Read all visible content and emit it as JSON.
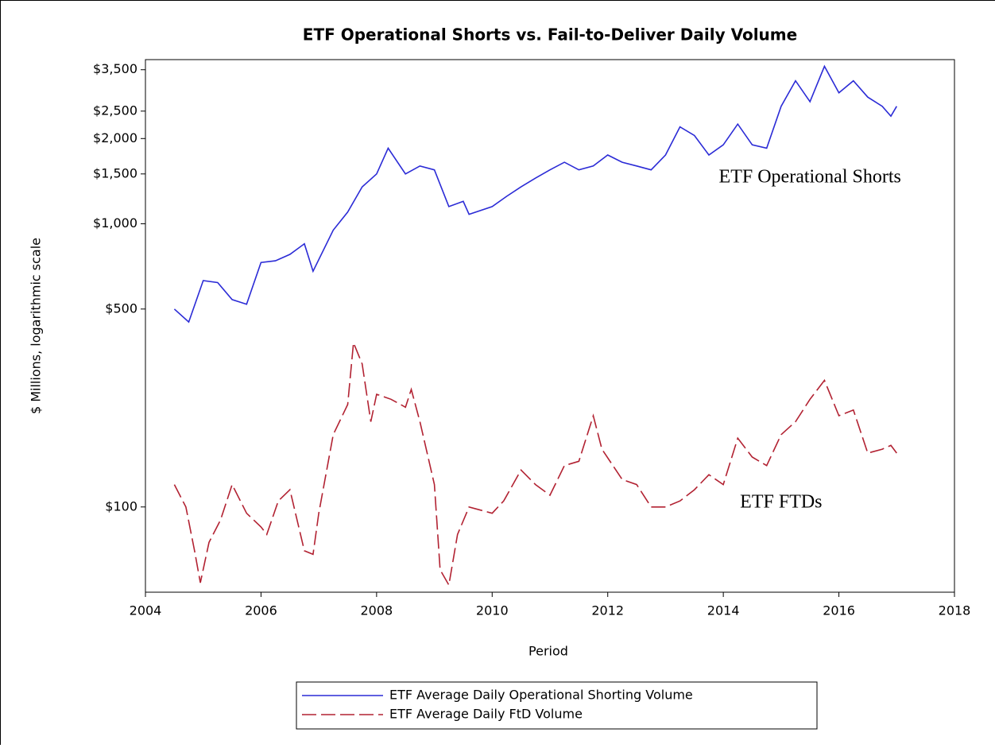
{
  "chart_data": {
    "type": "line",
    "title": "ETF Operational Shorts vs. Fail-to-Deliver Daily Volume",
    "xlabel": "Period",
    "ylabel": "$ Millions,  logarithmic scale",
    "log_y": true,
    "xlim": [
      2004,
      2018
    ],
    "xticks": [
      2004,
      2006,
      2008,
      2010,
      2012,
      2014,
      2016,
      2018
    ],
    "ylim": [
      50,
      3800
    ],
    "yticks": [
      {
        "value": 100,
        "label": "$100"
      },
      {
        "value": 500,
        "label": "$500"
      },
      {
        "value": 1000,
        "label": "$1,000"
      },
      {
        "value": 1500,
        "label": "$1,500"
      },
      {
        "value": 2000,
        "label": "$2,000"
      },
      {
        "value": 2500,
        "label": "$2,500"
      },
      {
        "value": 3500,
        "label": "$3,500"
      }
    ],
    "legend": "bottom",
    "annotations": [
      {
        "text": "ETF Operational Shorts",
        "x": 2015.5,
        "y": 1450
      },
      {
        "text": "ETF FTDs",
        "x": 2015.0,
        "y": 103
      }
    ],
    "series": [
      {
        "name": "ETF Average Daily Operational Shorting Volume",
        "color": "#2b2bd6",
        "line_style": "solid",
        "x": [
          2004.5,
          2004.75,
          2005.0,
          2005.25,
          2005.5,
          2005.75,
          2006.0,
          2006.25,
          2006.5,
          2006.75,
          2006.9,
          2007.25,
          2007.5,
          2007.75,
          2008.0,
          2008.2,
          2008.5,
          2008.75,
          2009.0,
          2009.25,
          2009.5,
          2009.6,
          2010.0,
          2010.25,
          2010.5,
          2010.75,
          2011.0,
          2011.25,
          2011.5,
          2011.75,
          2012.0,
          2012.25,
          2012.5,
          2012.75,
          2013.0,
          2013.25,
          2013.5,
          2013.75,
          2014.0,
          2014.25,
          2014.5,
          2014.75,
          2015.0,
          2015.25,
          2015.5,
          2015.75,
          2016.0,
          2016.25,
          2016.5,
          2016.75,
          2016.9,
          2017.0
        ],
        "values": [
          500,
          450,
          630,
          620,
          540,
          520,
          730,
          740,
          780,
          850,
          680,
          950,
          1100,
          1350,
          1500,
          1850,
          1500,
          1600,
          1550,
          1150,
          1200,
          1080,
          1150,
          1250,
          1350,
          1450,
          1550,
          1650,
          1550,
          1600,
          1750,
          1650,
          1600,
          1550,
          1750,
          2200,
          2050,
          1750,
          1900,
          2250,
          1900,
          1850,
          2600,
          3200,
          2700,
          3600,
          2900,
          3200,
          2800,
          2600,
          2400,
          2600
        ]
      },
      {
        "name": "ETF Average Daily FtD Volume",
        "color": "#b22232",
        "line_style": "dashed",
        "x": [
          2004.5,
          2004.7,
          2004.85,
          2004.95,
          2005.1,
          2005.3,
          2005.5,
          2005.75,
          2006.0,
          2006.1,
          2006.3,
          2006.5,
          2006.75,
          2006.9,
          2007.0,
          2007.25,
          2007.5,
          2007.6,
          2007.75,
          2007.9,
          2008.0,
          2008.25,
          2008.5,
          2008.6,
          2008.75,
          2009.0,
          2009.1,
          2009.25,
          2009.4,
          2009.6,
          2010.0,
          2010.2,
          2010.5,
          2010.75,
          2011.0,
          2011.25,
          2011.5,
          2011.75,
          2011.9,
          2012.25,
          2012.5,
          2012.75,
          2013.0,
          2013.25,
          2013.5,
          2013.75,
          2014.0,
          2014.25,
          2014.5,
          2014.75,
          2015.0,
          2015.25,
          2015.5,
          2015.75,
          2016.0,
          2016.25,
          2016.5,
          2016.75,
          2016.9,
          2017.0
        ],
        "values": [
          120,
          100,
          70,
          54,
          75,
          90,
          120,
          95,
          85,
          80,
          105,
          115,
          70,
          68,
          95,
          180,
          230,
          380,
          320,
          200,
          250,
          240,
          225,
          260,
          200,
          120,
          60,
          53,
          80,
          100,
          95,
          105,
          135,
          120,
          110,
          140,
          145,
          210,
          160,
          125,
          120,
          100,
          100,
          105,
          115,
          130,
          120,
          175,
          150,
          140,
          180,
          200,
          240,
          280,
          210,
          220,
          155,
          160,
          165,
          155
        ]
      }
    ]
  }
}
